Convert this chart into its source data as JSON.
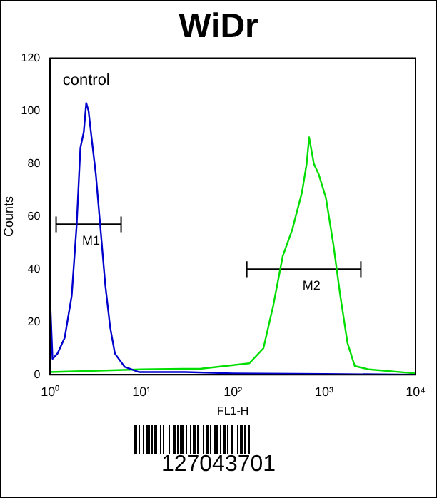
{
  "chart_data": {
    "type": "line",
    "title": "WiDr",
    "xlabel": "FL1-H",
    "ylabel": "Counts",
    "log": "x",
    "xlim": [
      1,
      10000
    ],
    "xticks": [
      {
        "value": 1,
        "label": "10⁰"
      },
      {
        "value": 10,
        "label": "10¹"
      },
      {
        "value": 100,
        "label": "10²"
      },
      {
        "value": 1000,
        "label": "10³"
      },
      {
        "value": 10000,
        "label": "10⁴"
      }
    ],
    "ylim": [
      0,
      120
    ],
    "yticks": [
      0,
      20,
      40,
      60,
      80,
      100,
      120
    ],
    "grid": false,
    "legend": false,
    "marker": "none",
    "line_style": "solid",
    "series": [
      {
        "name": "control",
        "color": "#0000cc",
        "x": [
          1,
          1.06,
          1.2,
          1.44,
          1.72,
          1.95,
          2.14,
          2.33,
          2.48,
          2.63,
          2.79,
          3.16,
          3.56,
          4.01,
          4.53,
          5.11,
          6.52,
          9.4,
          30,
          100,
          1000,
          10000
        ],
        "values": [
          28,
          6,
          8,
          14,
          30,
          57,
          86,
          92,
          103,
          100,
          92,
          76,
          55,
          34,
          18,
          8,
          3,
          1,
          1,
          0.5,
          0.3,
          0
        ]
      },
      {
        "color": "#00dd00",
        "x": [
          1,
          10,
          45,
          151,
          216,
          276,
          352,
          447,
          570,
          643,
          684,
          771,
          871,
          1045,
          1265,
          1500,
          1800,
          2160,
          3090,
          10000
        ],
        "values": [
          1,
          2,
          2.3,
          4.3,
          10,
          26,
          45,
          55,
          69,
          80,
          90,
          80,
          76,
          67,
          49,
          30,
          12,
          3.3,
          2,
          0.5
        ]
      },
      {
        "color": "#000000",
        "x": [
          1.16,
          5.97
        ],
        "values": [
          57,
          57
        ],
        "errors": [
          3,
          3
        ]
      },
      {
        "color": "#000000",
        "x": [
          142,
          2520
        ],
        "values": [
          40,
          40
        ],
        "errors": [
          3,
          3
        ]
      }
    ],
    "annotations": [
      {
        "text": "M1",
        "x": 2.8,
        "y": 57
      },
      {
        "text": "M2",
        "x": 727,
        "y": 40
      },
      "127043701"
    ]
  }
}
